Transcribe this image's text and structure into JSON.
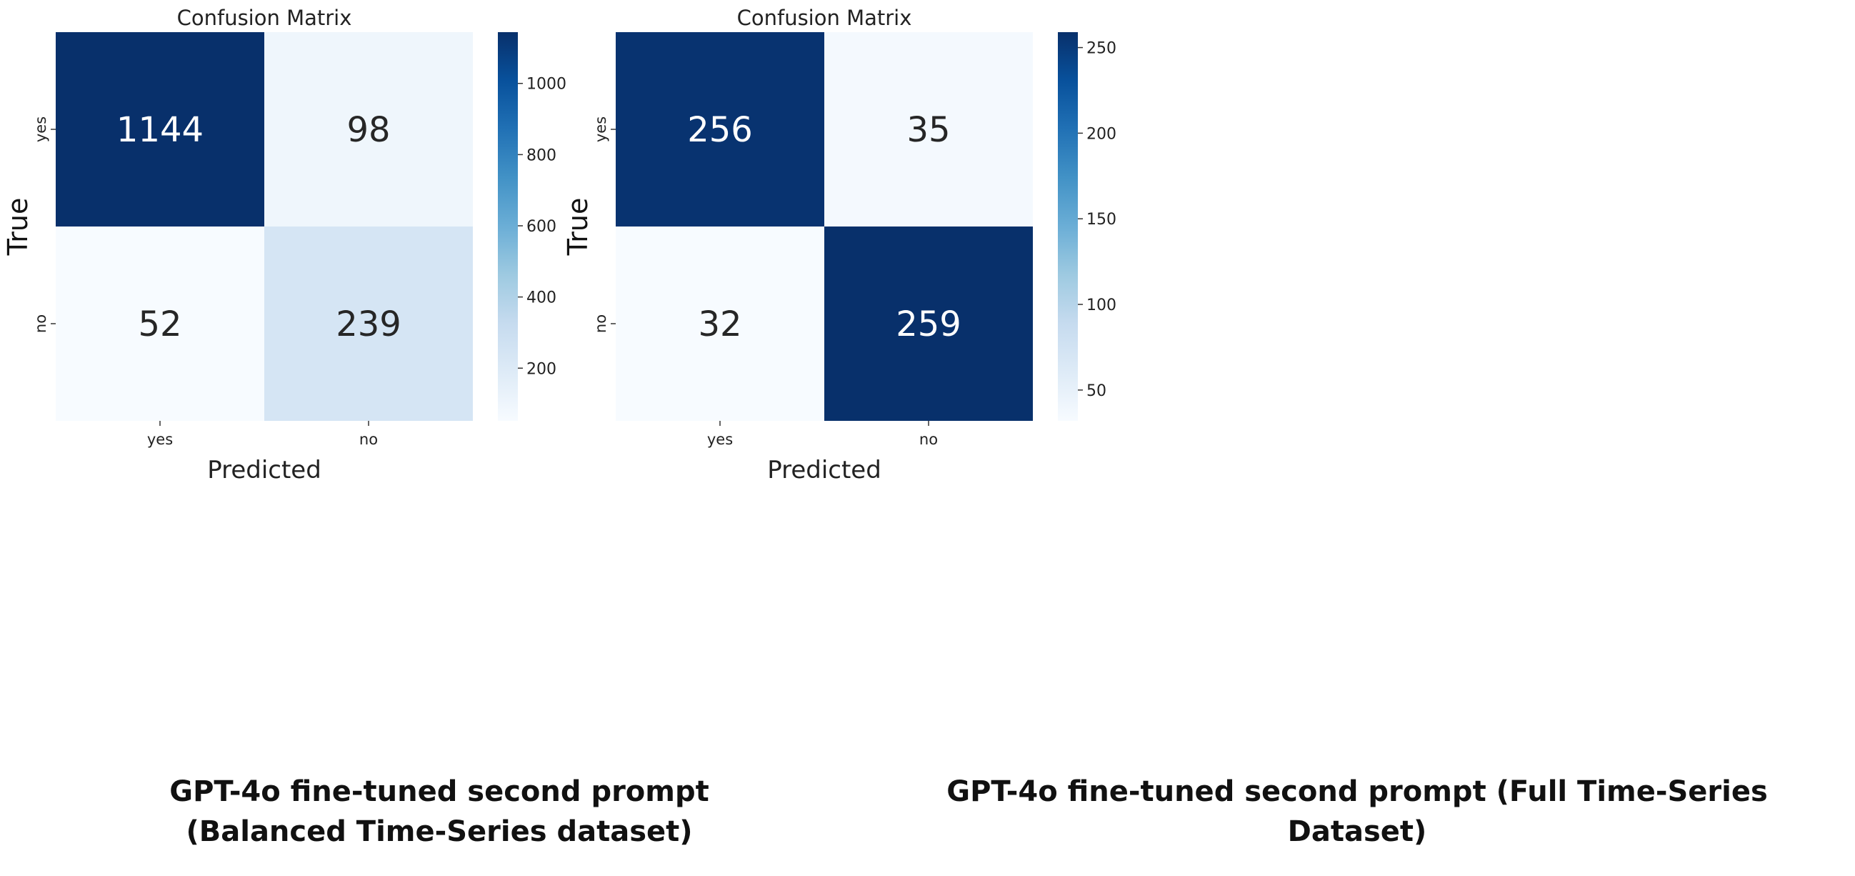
{
  "chart_data": [
    {
      "type": "heatmap",
      "title": "Confusion Matrix",
      "xlabel": "Predicted",
      "ylabel": "True",
      "x_categories": [
        "yes",
        "no"
      ],
      "y_categories": [
        "yes",
        "no"
      ],
      "values": [
        [
          1144,
          98
        ],
        [
          52,
          239
        ]
      ],
      "colormap": "Blues",
      "colorbar": {
        "min": 52,
        "max": 1144,
        "ticks": [
          200,
          400,
          600,
          800,
          1000
        ]
      },
      "caption": [
        "GPT-4o fine-tuned second prompt",
        "(Balanced Time-Series dataset)"
      ]
    },
    {
      "type": "heatmap",
      "title": "Confusion Matrix",
      "xlabel": "Predicted",
      "ylabel": "True",
      "x_categories": [
        "yes",
        "no"
      ],
      "y_categories": [
        "yes",
        "no"
      ],
      "values": [
        [
          256,
          35
        ],
        [
          32,
          259
        ]
      ],
      "colormap": "Blues",
      "colorbar": {
        "min": 32,
        "max": 259,
        "ticks": [
          50,
          100,
          150,
          200,
          250
        ]
      },
      "caption": [
        "GPT-4o fine-tuned second prompt (Full Time-Series",
        "Dataset)"
      ]
    }
  ]
}
